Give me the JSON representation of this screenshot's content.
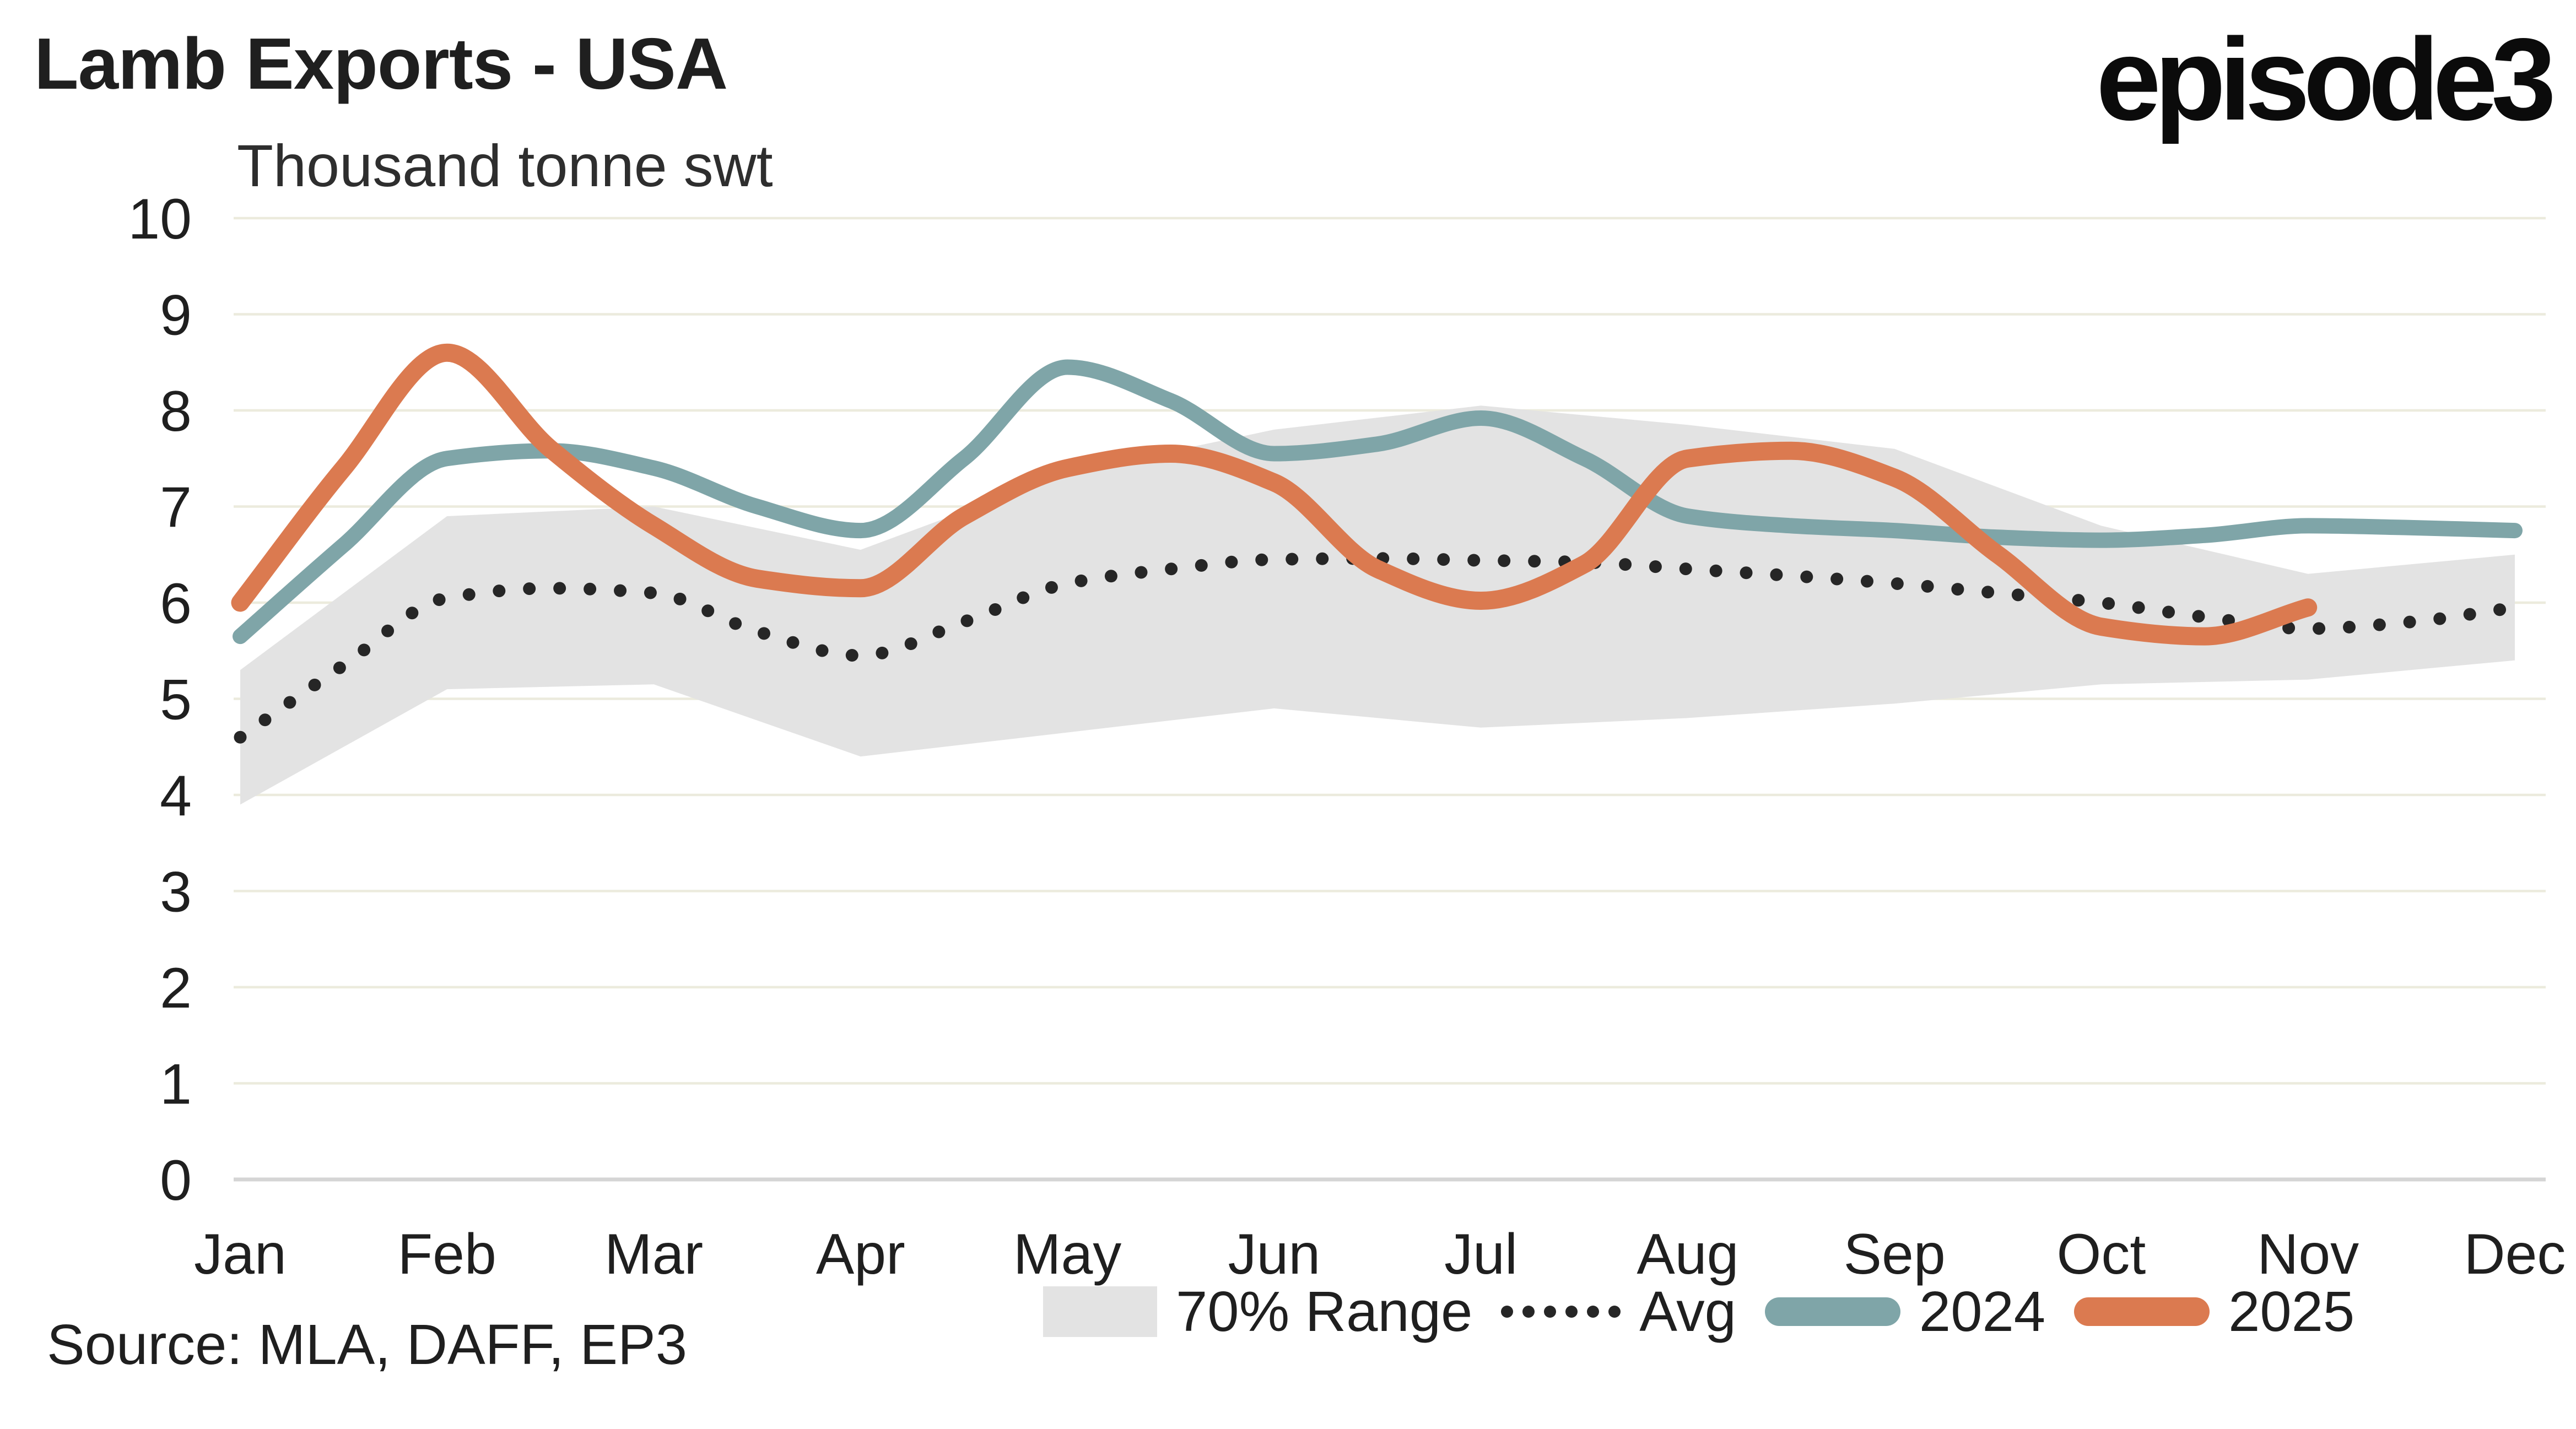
{
  "header": {
    "title": "Lamb Exports - USA",
    "logo": "episode3",
    "subtitle": "Thousand tonne swt"
  },
  "source_note": "Source: MLA, DAFF, EP3",
  "legend": [
    {
      "label": "70% Range",
      "type": "band",
      "color": "#e3e3e3"
    },
    {
      "label": "Avg",
      "type": "dotted",
      "color": "#262626"
    },
    {
      "label": "2024",
      "type": "line",
      "color": "#7fa5a8"
    },
    {
      "label": "2025",
      "type": "line",
      "color": "#db7a50"
    }
  ],
  "colors": {
    "background": "#ffffff",
    "gridline": "#ecebdd",
    "zero_axis": "#d5d5d5",
    "band": "#e3e3e3",
    "avg_dotted": "#262626",
    "series_2024": "#7fa5a8",
    "series_2025": "#db7a50",
    "text": "#1f1f1f"
  },
  "chart_data": {
    "type": "line",
    "title": "Lamb Exports - USA",
    "ylabel": "Thousand tonne swt",
    "xlabel": "",
    "ylim": [
      0,
      10
    ],
    "yticks": [
      0,
      1,
      2,
      3,
      4,
      5,
      6,
      7,
      8,
      9,
      10
    ],
    "grid": "horizontal",
    "legend_position": "bottom",
    "categories": [
      "Jan",
      "Feb",
      "Mar",
      "Apr",
      "May",
      "Jun",
      "Jul",
      "Aug",
      "Sep",
      "Oct",
      "Nov",
      "Dec"
    ],
    "band_70_range": {
      "name": "70% Range",
      "top": [
        5.3,
        6.9,
        7.0,
        6.55,
        7.35,
        7.8,
        8.05,
        7.85,
        7.6,
        6.8,
        6.3,
        6.5
      ],
      "bottom": [
        3.9,
        5.1,
        5.15,
        4.4,
        4.65,
        4.9,
        4.7,
        4.8,
        4.95,
        5.15,
        5.2,
        5.4
      ]
    },
    "series": [
      {
        "name": "Avg",
        "style": "dotted",
        "color": "#262626",
        "x": [
          1,
          1.5,
          2,
          2.5,
          3,
          3.5,
          4,
          4.5,
          5,
          5.5,
          6,
          6.5,
          7,
          7.5,
          8,
          8.5,
          9,
          9.5,
          10,
          10.5,
          11,
          11.5,
          12
        ],
        "values": [
          4.6,
          5.35,
          6.05,
          6.15,
          6.1,
          5.7,
          5.45,
          5.8,
          6.2,
          6.35,
          6.45,
          6.46,
          6.44,
          6.42,
          6.35,
          6.28,
          6.2,
          6.1,
          6.0,
          5.85,
          5.73,
          5.8,
          5.95
        ]
      },
      {
        "name": "2024",
        "style": "solid",
        "color": "#7fa5a8",
        "x": [
          1,
          1.5,
          2,
          2.5,
          3,
          3.5,
          4,
          4.5,
          5,
          5.5,
          6,
          6.5,
          7,
          7.5,
          8,
          8.5,
          9,
          9.5,
          10,
          10.5,
          11,
          11.5,
          12
        ],
        "values": [
          5.65,
          6.6,
          7.5,
          7.58,
          7.4,
          7.0,
          6.75,
          7.5,
          8.45,
          8.1,
          7.55,
          7.65,
          7.92,
          7.5,
          6.9,
          6.8,
          6.75,
          6.68,
          6.65,
          6.7,
          6.8,
          6.78,
          6.75
        ]
      },
      {
        "name": "2025",
        "style": "solid",
        "color": "#db7a50",
        "x": [
          1,
          1.5,
          2,
          2.5,
          3,
          3.5,
          4,
          4.5,
          5,
          5.5,
          6,
          6.5,
          7,
          7.5,
          8,
          8.5,
          9,
          9.5,
          10,
          10.5,
          11
        ],
        "values": [
          6.0,
          7.4,
          8.6,
          7.6,
          6.8,
          6.25,
          6.15,
          6.9,
          7.4,
          7.55,
          7.25,
          6.35,
          6.02,
          6.4,
          7.5,
          7.58,
          7.3,
          6.5,
          5.75,
          5.65,
          5.95
        ]
      }
    ]
  }
}
